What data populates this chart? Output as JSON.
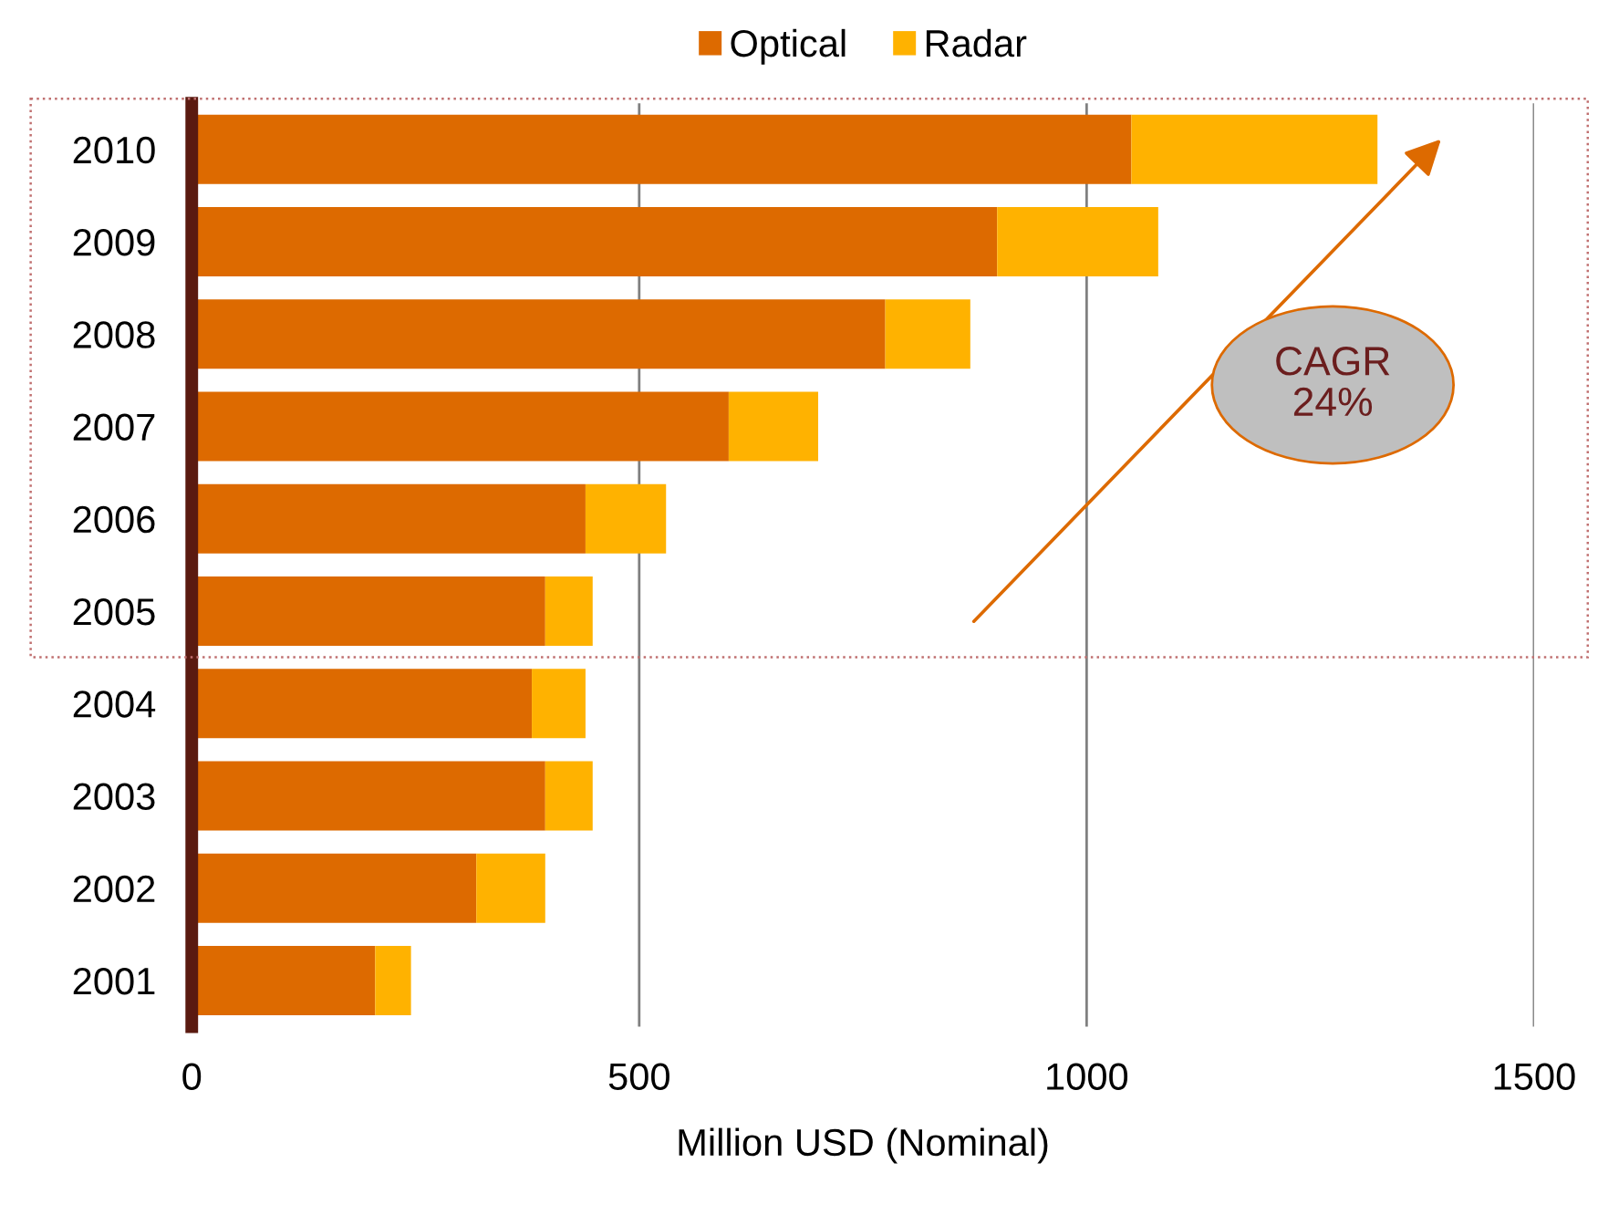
{
  "chart_data": {
    "type": "bar",
    "orientation": "horizontal",
    "stacked": true,
    "xlabel": "Million USD (Nominal)",
    "categories": [
      "2010",
      "2009",
      "2008",
      "2007",
      "2006",
      "2005",
      "2004",
      "2003",
      "2002",
      "2001"
    ],
    "series": [
      {
        "name": "Optical",
        "color": "#dd6a00",
        "values": [
          1050,
          900,
          775,
          600,
          440,
          395,
          380,
          395,
          318,
          205
        ]
      },
      {
        "name": "Radar",
        "color": "#ffb200",
        "values": [
          275,
          180,
          95,
          100,
          90,
          53,
          60,
          53,
          77,
          40
        ]
      }
    ],
    "xlim": [
      0,
      1500
    ],
    "xticks": [
      0,
      500,
      1000,
      1500
    ],
    "grid": "x",
    "legend": "top",
    "annotations": [
      "CAGR\n24%"
    ]
  }
}
